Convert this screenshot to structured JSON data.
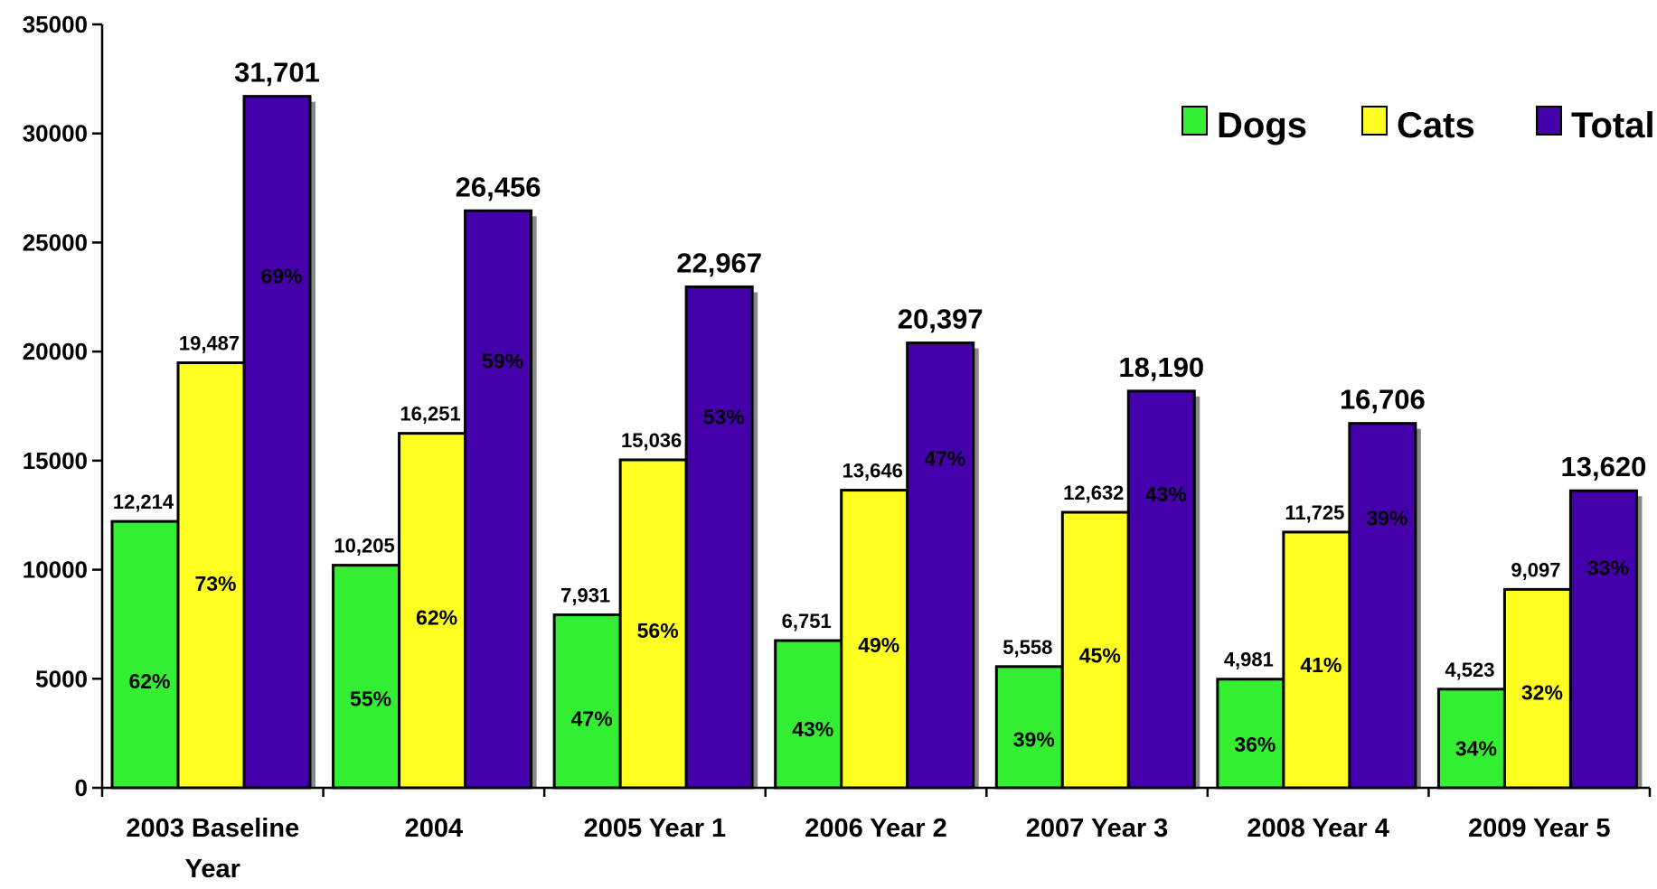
{
  "chart_data": {
    "type": "bar",
    "categories": [
      [
        "2003 Baseline",
        "Year"
      ],
      [
        "2004"
      ],
      [
        "2005 Year 1"
      ],
      [
        "2006 Year 2"
      ],
      [
        "2007 Year 3"
      ],
      [
        "2008  Year 4"
      ],
      [
        "2009 Year 5"
      ]
    ],
    "series": [
      {
        "name": "Dogs",
        "color": "#33ee33",
        "values": [
          12214,
          10205,
          7931,
          6751,
          5558,
          4981,
          4523
        ],
        "value_labels": [
          "12,214",
          "10,205",
          "7,931",
          "6,751",
          "5,558",
          "4,981",
          "4,523"
        ],
        "pct_labels": [
          "62%",
          "55%",
          "47%",
          "43%",
          "39%",
          "36%",
          "34%"
        ]
      },
      {
        "name": "Cats",
        "color": "#ffff22",
        "values": [
          19487,
          16251,
          15036,
          13646,
          12632,
          11725,
          9097
        ],
        "value_labels": [
          "19,487",
          "16,251",
          "15,036",
          "13,646",
          "12,632",
          "11,725",
          "9,097"
        ],
        "pct_labels": [
          "73%",
          "62%",
          "56%",
          "49%",
          "45%",
          "41%",
          "32%"
        ]
      },
      {
        "name": "Total",
        "color": "#4400aa",
        "values": [
          31701,
          26456,
          22967,
          20397,
          18190,
          16706,
          13620
        ],
        "value_labels": [
          "31,701",
          "26,456",
          "22,967",
          "20,397",
          "18,190",
          "16,706",
          "13,620"
        ],
        "pct_labels": [
          "69%",
          "59%",
          "53%",
          "47%",
          "43%",
          "39%",
          "33%"
        ]
      }
    ],
    "yticks": [
      0,
      5000,
      10000,
      15000,
      20000,
      25000,
      30000,
      35000
    ],
    "ytick_labels": [
      "0",
      "5000",
      "10000",
      "15000",
      "20000",
      "25000",
      "30000",
      "35000"
    ],
    "ylim": [
      0,
      35000
    ],
    "title": "",
    "xlabel": "",
    "ylabel": "",
    "grid": false,
    "legend_position": "top-right"
  }
}
